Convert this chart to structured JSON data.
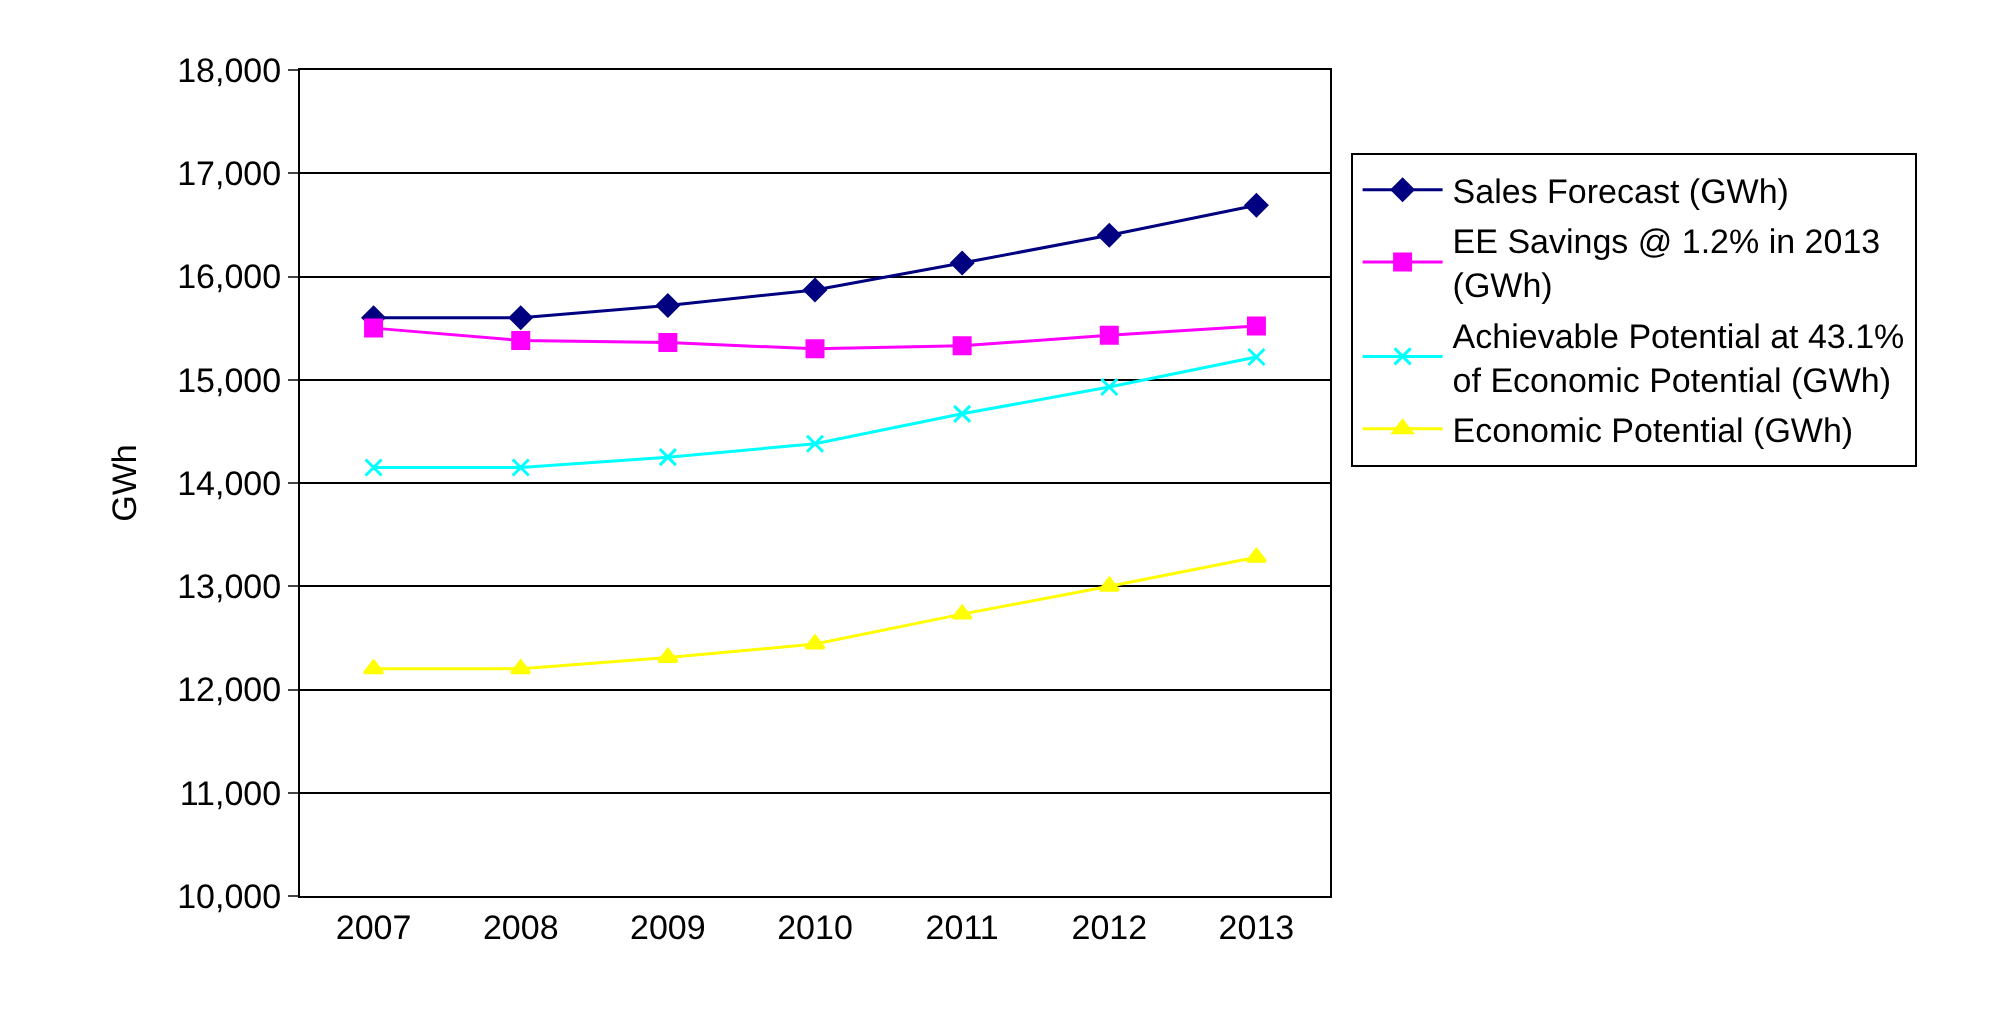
{
  "chart_data": {
    "type": "line",
    "ylabel": "GWh",
    "categories": [
      "2007",
      "2008",
      "2009",
      "2010",
      "2011",
      "2012",
      "2013"
    ],
    "series": [
      {
        "name": "Sales Forecast (GWh)",
        "color": "#000080",
        "marker": "diamond",
        "values": [
          15600,
          15600,
          15720,
          15870,
          16130,
          16400,
          16690
        ]
      },
      {
        "name": "EE Savings @ 1.2% in 2013 (GWh)",
        "color": "#ff00ff",
        "marker": "square",
        "values": [
          15500,
          15380,
          15360,
          15300,
          15330,
          15430,
          15520
        ]
      },
      {
        "name": "Achievable Potential at 43.1% of Economic Potential (GWh)",
        "color": "#00ffff",
        "marker": "cross",
        "values": [
          14150,
          14150,
          14250,
          14380,
          14670,
          14930,
          15220
        ]
      },
      {
        "name": "Economic Potential (GWh)",
        "color": "#ffff00",
        "marker": "triangle",
        "values": [
          12200,
          12200,
          12310,
          12440,
          12730,
          13000,
          13280
        ]
      }
    ],
    "ylim": [
      10000,
      18000
    ],
    "yticks": [
      {
        "value": 10000,
        "label": "10,000"
      },
      {
        "value": 11000,
        "label": "11,000"
      },
      {
        "value": 12000,
        "label": "12,000"
      },
      {
        "value": 13000,
        "label": "13,000"
      },
      {
        "value": 14000,
        "label": "14,000"
      },
      {
        "value": 15000,
        "label": "15,000"
      },
      {
        "value": 16000,
        "label": "16,000"
      },
      {
        "value": 17000,
        "label": "17,000"
      },
      {
        "value": 18000,
        "label": "18,000"
      }
    ],
    "grid": "y",
    "legend": "right",
    "line_style": "solid"
  }
}
